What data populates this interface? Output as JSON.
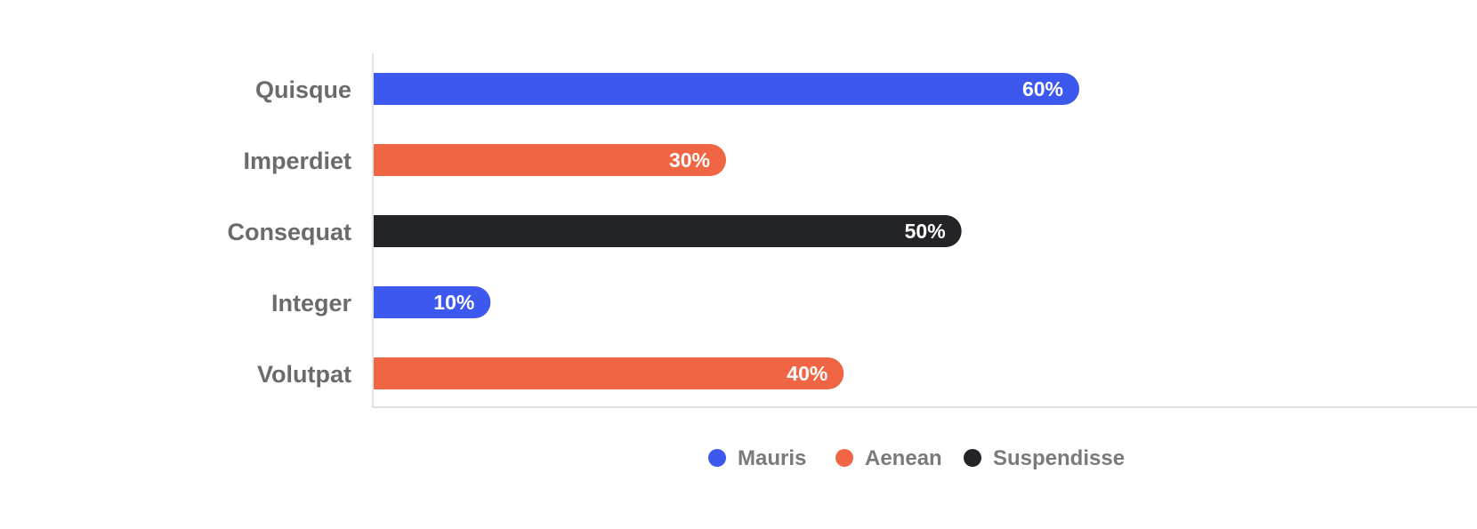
{
  "chart_data": {
    "type": "bar",
    "orientation": "horizontal",
    "categories": [
      "Quisque",
      "Imperdiet",
      "Consequat",
      "Integer",
      "Volutpat"
    ],
    "values": [
      60,
      30,
      50,
      10,
      40
    ],
    "value_suffix": "%",
    "bar_series": [
      "Mauris",
      "Aenean",
      "Suspendisse",
      "Mauris",
      "Aenean"
    ],
    "series": [
      {
        "name": "Mauris",
        "color": "#3c58ee"
      },
      {
        "name": "Aenean",
        "color": "#f06544"
      },
      {
        "name": "Suspendisse",
        "color": "#232428"
      }
    ],
    "xlim": [
      0,
      100
    ],
    "title": "",
    "xlabel": "",
    "ylabel": "",
    "grid": false,
    "legend_position": "bottom-center",
    "colors": {
      "category_label": "#6b6b6b",
      "legend_label": "#7a7a7a",
      "value_label": "#ffffff",
      "axis": "#e1e1e1"
    }
  }
}
